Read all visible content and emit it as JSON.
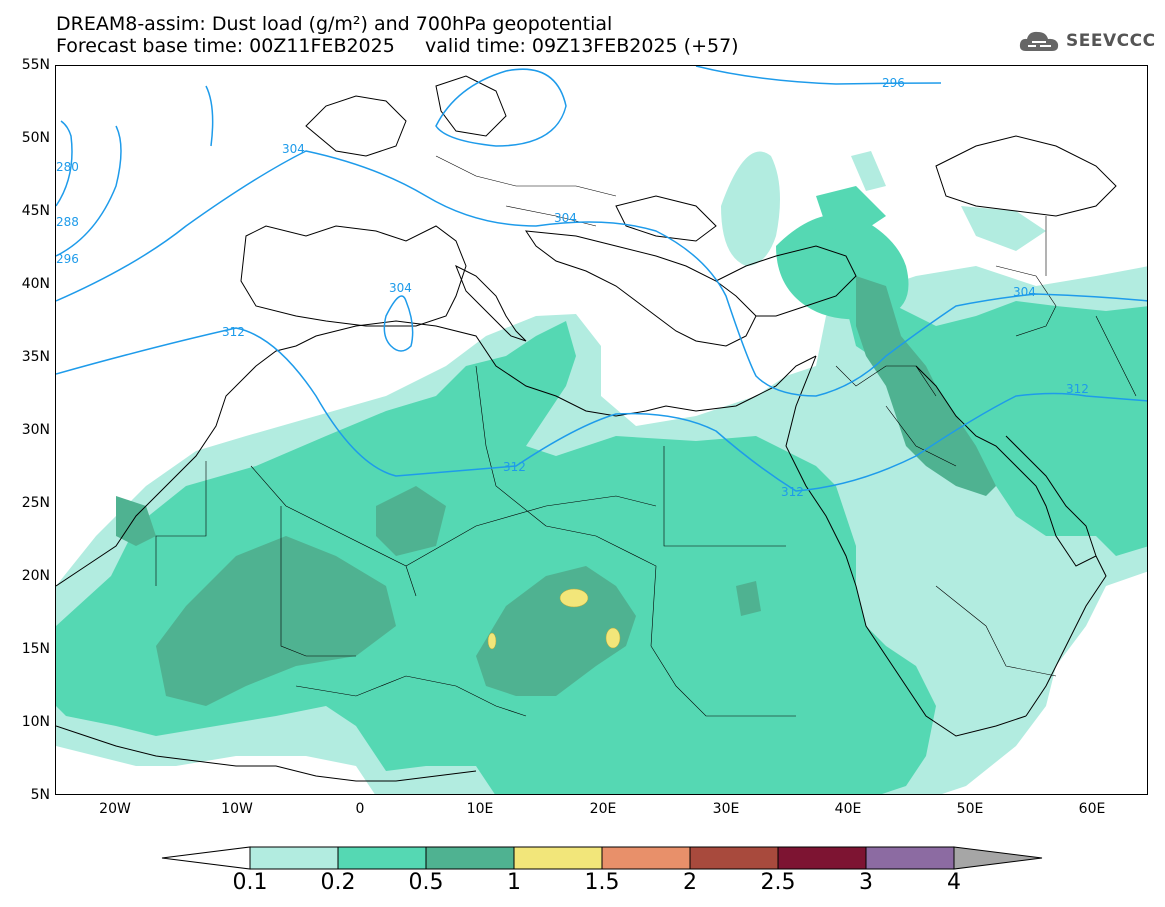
{
  "header": {
    "title_line1": "DREAM8-assim: Dust load (g/m²) and 700hPa geopotential",
    "title_line2": "Forecast base time: 00Z11FEB2025     valid time: 09Z13FEB2025 (+57)",
    "logo_text": "SEEVCCC"
  },
  "axes": {
    "lat_labels": [
      "55N",
      "50N",
      "45N",
      "40N",
      "35N",
      "30N",
      "25N",
      "20N",
      "15N",
      "10N",
      "5N"
    ],
    "lon_labels": [
      "20W",
      "10W",
      "0",
      "10E",
      "20E",
      "30E",
      "40E",
      "50E",
      "60E"
    ]
  },
  "contour_labels": [
    "296",
    "304",
    "304",
    "304",
    "312",
    "312",
    "312",
    "312",
    "304",
    "280",
    "288",
    "296"
  ],
  "colorbar": {
    "labels": [
      "0.1",
      "0.2",
      "0.5",
      "1",
      "1.5",
      "2",
      "2.5",
      "3",
      "4"
    ],
    "colors": [
      "#ffffff",
      "#b2ece0",
      "#55d8b3",
      "#4fb291",
      "#f2e67a",
      "#e8906a",
      "#a84a3d",
      "#7d1432",
      "#8c6ba2",
      "#a6a6a6"
    ]
  },
  "colors": {
    "dust_01": "#b2ece0",
    "dust_02": "#55d8b3",
    "dust_05": "#4fb291",
    "dust_1": "#f2e67a",
    "contour": "#1e9bea"
  }
}
